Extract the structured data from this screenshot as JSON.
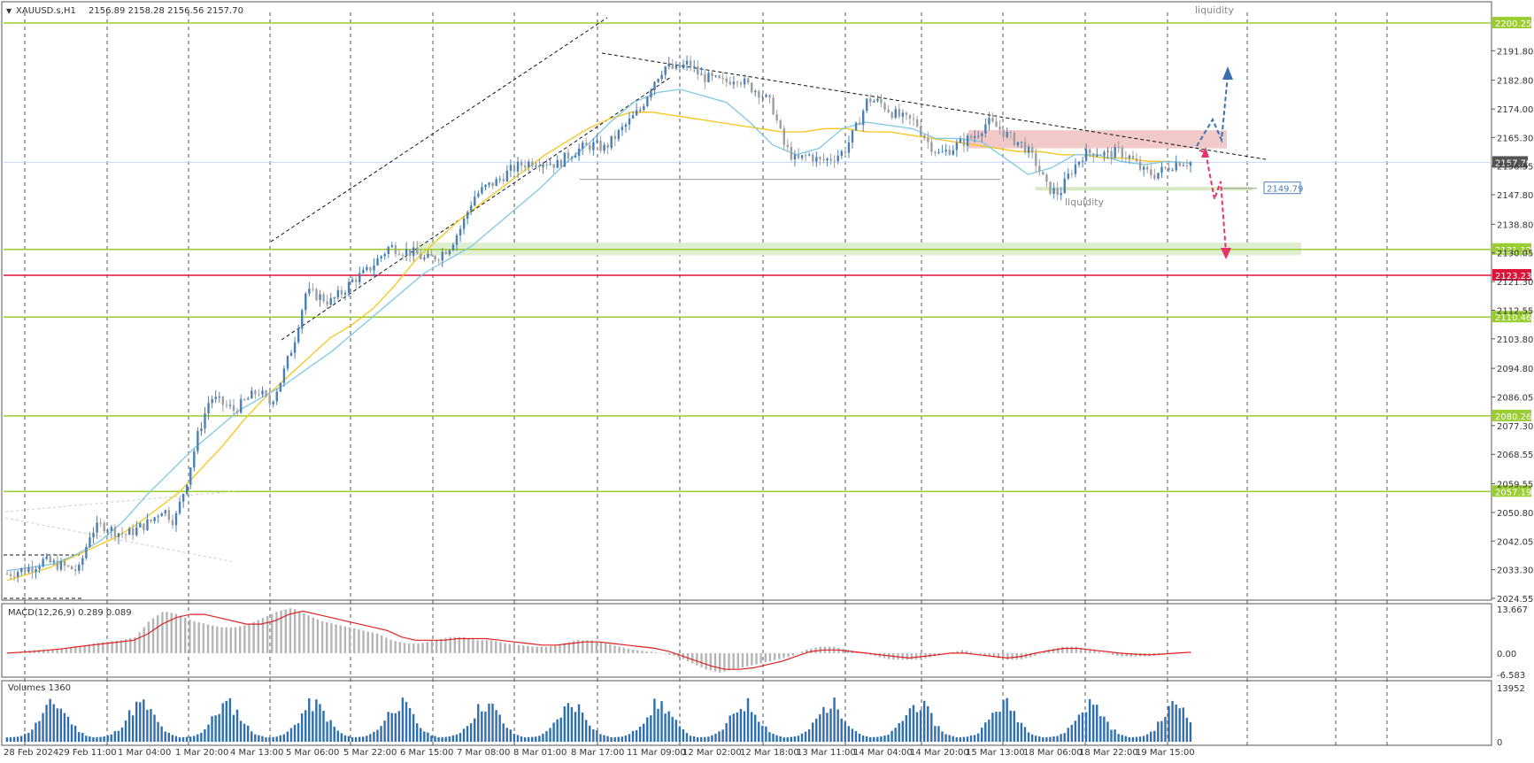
{
  "chart_data": [
    {
      "type": "candlestick",
      "panel": "price",
      "symbol_label": "XAUUSD.s,H1",
      "ohlc_label": "2156.89 2158.28 2156.56 2157.70",
      "ylim": [
        2024.55,
        2203.5
      ],
      "y_ticks": [
        "2191.80",
        "2182.80",
        "2174.00",
        "2165.30",
        "2156.55",
        "2147.80",
        "2138.80",
        "2130.05",
        "2121.30",
        "2112.55",
        "2103.80",
        "2094.80",
        "2086.05",
        "2077.30",
        "2068.55",
        "2059.55",
        "2050.80",
        "2042.05",
        "2033.30",
        "2024.55"
      ],
      "current_price": "2157.70",
      "levels": [
        {
          "value": 2200.25,
          "label": "2200.25",
          "color": "#9acd32"
        },
        {
          "value": 2131.12,
          "label": "2131.12",
          "color": "#9acd32"
        },
        {
          "value": 2123.23,
          "label": "2123.23",
          "color": "#dc143c"
        },
        {
          "value": 2110.46,
          "label": "2110.46",
          "color": "#9acd32"
        },
        {
          "value": 2080.26,
          "label": "2080.26",
          "color": "#9acd32"
        },
        {
          "value": 2057.19,
          "label": "2057.19",
          "color": "#9acd32"
        }
      ],
      "extra_level": {
        "value": 2149.79,
        "label": "2149.79"
      },
      "annotations": [
        "liquidity",
        "liquidity"
      ],
      "close_path": [
        2032,
        2033,
        2034,
        2036,
        2035,
        2034,
        2033,
        2045,
        2047,
        2045,
        2044,
        2046,
        2048,
        2052,
        2048,
        2060,
        2075,
        2086,
        2084,
        2082,
        2085,
        2088,
        2084,
        2092,
        2103,
        2118,
        2117,
        2115,
        2118,
        2122,
        2124,
        2128,
        2132,
        2131,
        2130,
        2128,
        2129,
        2132,
        2138,
        2147,
        2150,
        2152,
        2155,
        2157,
        2158,
        2158,
        2157,
        2160,
        2162,
        2163,
        2162,
        2166,
        2170,
        2174,
        2182,
        2187,
        2186,
        2188,
        2184,
        2183,
        2182,
        2184,
        2181,
        2179,
        2175,
        2163,
        2158,
        2160,
        2158,
        2159,
        2161,
        2168,
        2177,
        2176,
        2173,
        2171,
        2170,
        2164,
        2160,
        2162,
        2164,
        2166,
        2170,
        2168,
        2165,
        2163,
        2158,
        2150,
        2148,
        2155,
        2160,
        2161,
        2160,
        2161,
        2159,
        2155,
        2154,
        2156,
        2158,
        2157.7
      ],
      "ma_slow": [
        2030,
        2032,
        2034,
        2037,
        2040,
        2043,
        2047,
        2052,
        2057,
        2064,
        2071,
        2079,
        2086,
        2092,
        2098,
        2104,
        2108,
        2113,
        2120,
        2128,
        2134,
        2140,
        2145,
        2150,
        2155,
        2160,
        2164,
        2168,
        2171,
        2173,
        2173,
        2172,
        2171,
        2170,
        2169,
        2168,
        2167,
        2167,
        2168,
        2168,
        2167,
        2167,
        2166,
        2165,
        2164,
        2163,
        2162,
        2161,
        2161,
        2160,
        2160,
        2159,
        2159,
        2158,
        2158,
        2157.5
      ],
      "ma_fast": [
        2033,
        2034,
        2035,
        2038,
        2042,
        2048,
        2056,
        2063,
        2070,
        2076,
        2082,
        2086,
        2090,
        2095,
        2100,
        2106,
        2112,
        2118,
        2124,
        2128,
        2132,
        2138,
        2144,
        2150,
        2157,
        2163,
        2170,
        2176,
        2179,
        2180,
        2178,
        2176,
        2170,
        2163,
        2160,
        2162,
        2168,
        2170,
        2169,
        2168,
        2165,
        2165,
        2164,
        2159,
        2154,
        2156,
        2160,
        2160,
        2158,
        2157,
        2158,
        2157.5
      ]
    },
    {
      "type": "line+histogram",
      "panel": "macd",
      "label": "MACD(12,26,9) 0.289 0.089",
      "ylim": [
        -6.583,
        13.667
      ],
      "y_ticks": [
        "13.667",
        "0.00",
        "-6.583"
      ],
      "histogram": [
        0,
        0.5,
        1,
        1,
        1.5,
        2,
        3,
        3.5,
        4,
        5,
        10,
        13,
        12,
        10,
        9,
        8,
        8,
        9,
        11,
        13,
        14,
        12,
        10,
        9,
        8,
        7,
        6,
        4,
        3,
        3,
        4,
        5,
        5,
        4,
        4,
        3,
        2.5,
        2,
        2,
        3,
        4,
        4,
        3,
        2,
        1,
        0.5,
        0,
        -1,
        -3,
        -5,
        -6,
        -5,
        -4,
        -3,
        -2,
        -1,
        1,
        2,
        2,
        1,
        0,
        -1,
        -2,
        -2,
        -2,
        -1,
        0,
        1,
        0,
        -1,
        -2,
        -2,
        -1,
        1,
        2,
        2,
        1,
        0,
        -1,
        -1,
        -1,
        -0.5,
        0,
        0.3
      ],
      "signal": [
        0,
        0.3,
        0.6,
        1,
        1.4,
        2,
        2.5,
        3,
        3.5,
        4,
        6,
        9,
        11,
        12,
        12,
        11,
        10,
        9,
        9,
        10,
        12,
        13,
        12,
        11,
        10,
        9,
        8,
        7,
        5,
        4,
        4,
        4,
        4.5,
        4.5,
        4.5,
        4,
        3.5,
        3,
        2.5,
        2.5,
        3,
        3.5,
        3.5,
        3,
        2.5,
        2,
        1.5,
        0.5,
        -1,
        -2.5,
        -4,
        -5,
        -5,
        -4.5,
        -3.5,
        -2.5,
        -1,
        0.5,
        1,
        1,
        0.5,
        0,
        -0.5,
        -1,
        -1.5,
        -1,
        -0.5,
        0,
        0,
        -0.5,
        -1,
        -1.5,
        -1,
        0,
        0.8,
        1.5,
        1.5,
        1,
        0.5,
        0,
        -0.3,
        -0.5,
        -0.3,
        0,
        0.3
      ]
    },
    {
      "type": "bar",
      "panel": "volumes",
      "label": "Volumes 1360",
      "ylim": [
        0,
        13952
      ],
      "y_ticks": [
        "13952",
        "0"
      ]
    }
  ],
  "time_axis": [
    "28 Feb 2024",
    "29 Feb 11:00",
    "1 Mar 04:00",
    "1 Mar 20:00",
    "4 Mar 13:00",
    "5 Mar 06:00",
    "5 Mar 22:00",
    "6 Mar 15:00",
    "7 Mar 08:00",
    "8 Mar 01:00",
    "8 Mar 17:00",
    "11 Mar 09:00",
    "12 Mar 02:00",
    "12 Mar 18:00",
    "13 Mar 11:00",
    "14 Mar 04:00",
    "14 Mar 20:00",
    "15 Mar 13:00",
    "18 Mar 06:00",
    "18 Mar 22:00",
    "19 Mar 15:00"
  ],
  "colors": {
    "bull": "#4a7fb5",
    "bear": "#9e9e9e",
    "ma_fast": "#7ec8e3",
    "ma_slow": "#f5c518",
    "level_green": "#9acd32",
    "level_red": "#dc143c",
    "zone_green": "#dfeed0",
    "zone_red": "#f2c9c9",
    "macd_signal": "#e02020",
    "macd_hist": "#b5b5b5",
    "volume": "#2f6fb0",
    "arrow_up": "#3b6fb0",
    "arrow_down": "#e8336a"
  }
}
